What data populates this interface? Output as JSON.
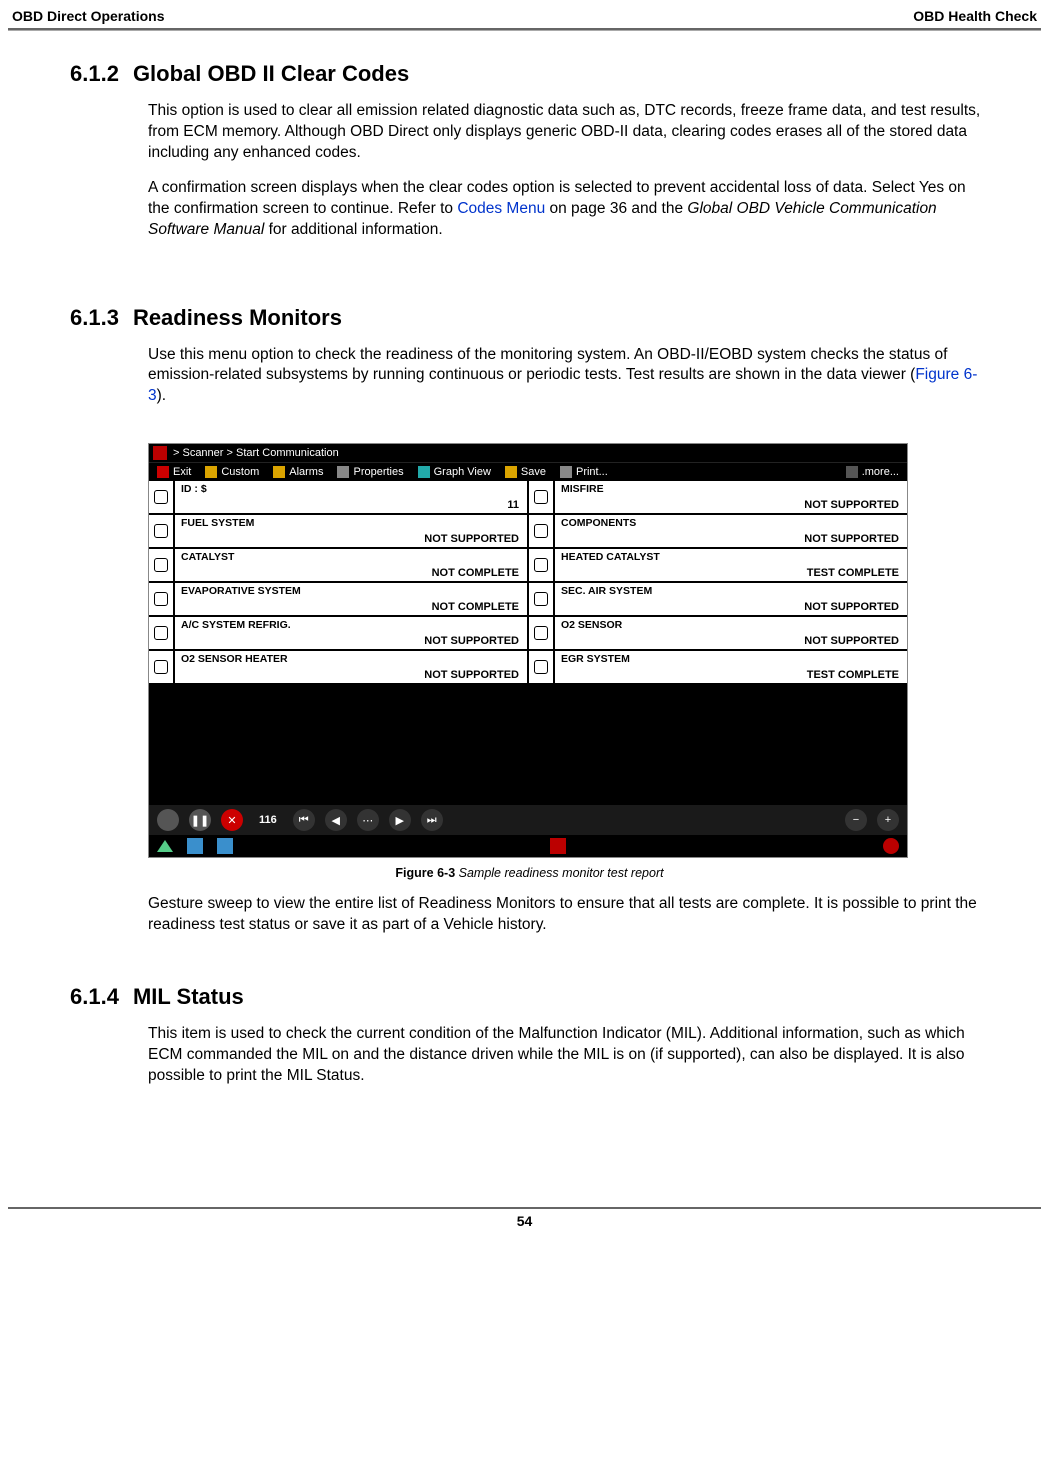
{
  "header": {
    "left": "OBD Direct Operations",
    "right": "OBD Health Check"
  },
  "sec612": {
    "num": "6.1.2",
    "title": "Global OBD II Clear Codes",
    "p1": "This option is used to clear all emission related diagnostic data such as, DTC records, freeze frame data, and test results, from ECM memory. Although OBD Direct only displays generic OBD-II data, clearing codes erases all of the stored data including any enhanced codes.",
    "p2a": "A confirmation screen displays when the clear codes option is selected to prevent accidental loss of data. Select Yes on the confirmation screen to continue. Refer to ",
    "p2_link": "Codes Menu",
    "p2b": " on page 36 and the ",
    "p2_italic": "Global OBD Vehicle Communication Software Manual",
    "p2c": " for additional information."
  },
  "sec613": {
    "num": "6.1.3",
    "title": "Readiness Monitors",
    "p1a": "Use this menu option to check the readiness of the monitoring system. An OBD-II/EOBD system checks the status of emission-related subsystems by running continuous or periodic tests. Test results are shown in the data viewer (",
    "p1_link": "Figure 6-3",
    "p1b": ").",
    "p2": "Gesture sweep to view the entire list of Readiness Monitors to ensure that all tests are complete. It is possible to print the readiness test status or save it as part of a Vehicle history."
  },
  "figure": {
    "label": "Figure 6-3 ",
    "title": "Sample readiness monitor test report",
    "breadcrumb": "> Scanner  > Start Communication",
    "toolbar": {
      "exit": "Exit",
      "custom": "Custom",
      "alarms": "Alarms",
      "properties": "Properties",
      "graph": "Graph View",
      "save": "Save",
      "print": "Print...",
      "more": ".more..."
    },
    "left_rows": [
      {
        "label": "ID : $",
        "value": "11"
      },
      {
        "label": "FUEL SYSTEM",
        "value": "NOT SUPPORTED"
      },
      {
        "label": "CATALYST",
        "value": "NOT COMPLETE"
      },
      {
        "label": "EVAPORATIVE SYSTEM",
        "value": "NOT COMPLETE"
      },
      {
        "label": "A/C SYSTEM REFRIG.",
        "value": "NOT SUPPORTED"
      },
      {
        "label": "O2 SENSOR HEATER",
        "value": "NOT SUPPORTED"
      }
    ],
    "right_rows": [
      {
        "label": "MISFIRE",
        "value": "NOT SUPPORTED"
      },
      {
        "label": "COMPONENTS",
        "value": "NOT SUPPORTED"
      },
      {
        "label": "HEATED CATALYST",
        "value": "TEST COMPLETE"
      },
      {
        "label": "SEC. AIR SYSTEM",
        "value": "NOT SUPPORTED"
      },
      {
        "label": "O2 SENSOR",
        "value": "NOT SUPPORTED"
      },
      {
        "label": "EGR SYSTEM",
        "value": "TEST COMPLETE"
      }
    ],
    "playbar_num": "116"
  },
  "sec614": {
    "num": "6.1.4",
    "title": "MIL Status",
    "p1": "This item is used to check the current condition of the Malfunction Indicator (MIL). Additional information, such as which ECM commanded the MIL on and the distance driven while the MIL is on (if supported), can also be displayed. It is also possible to print the MIL Status."
  },
  "page_number": "54"
}
